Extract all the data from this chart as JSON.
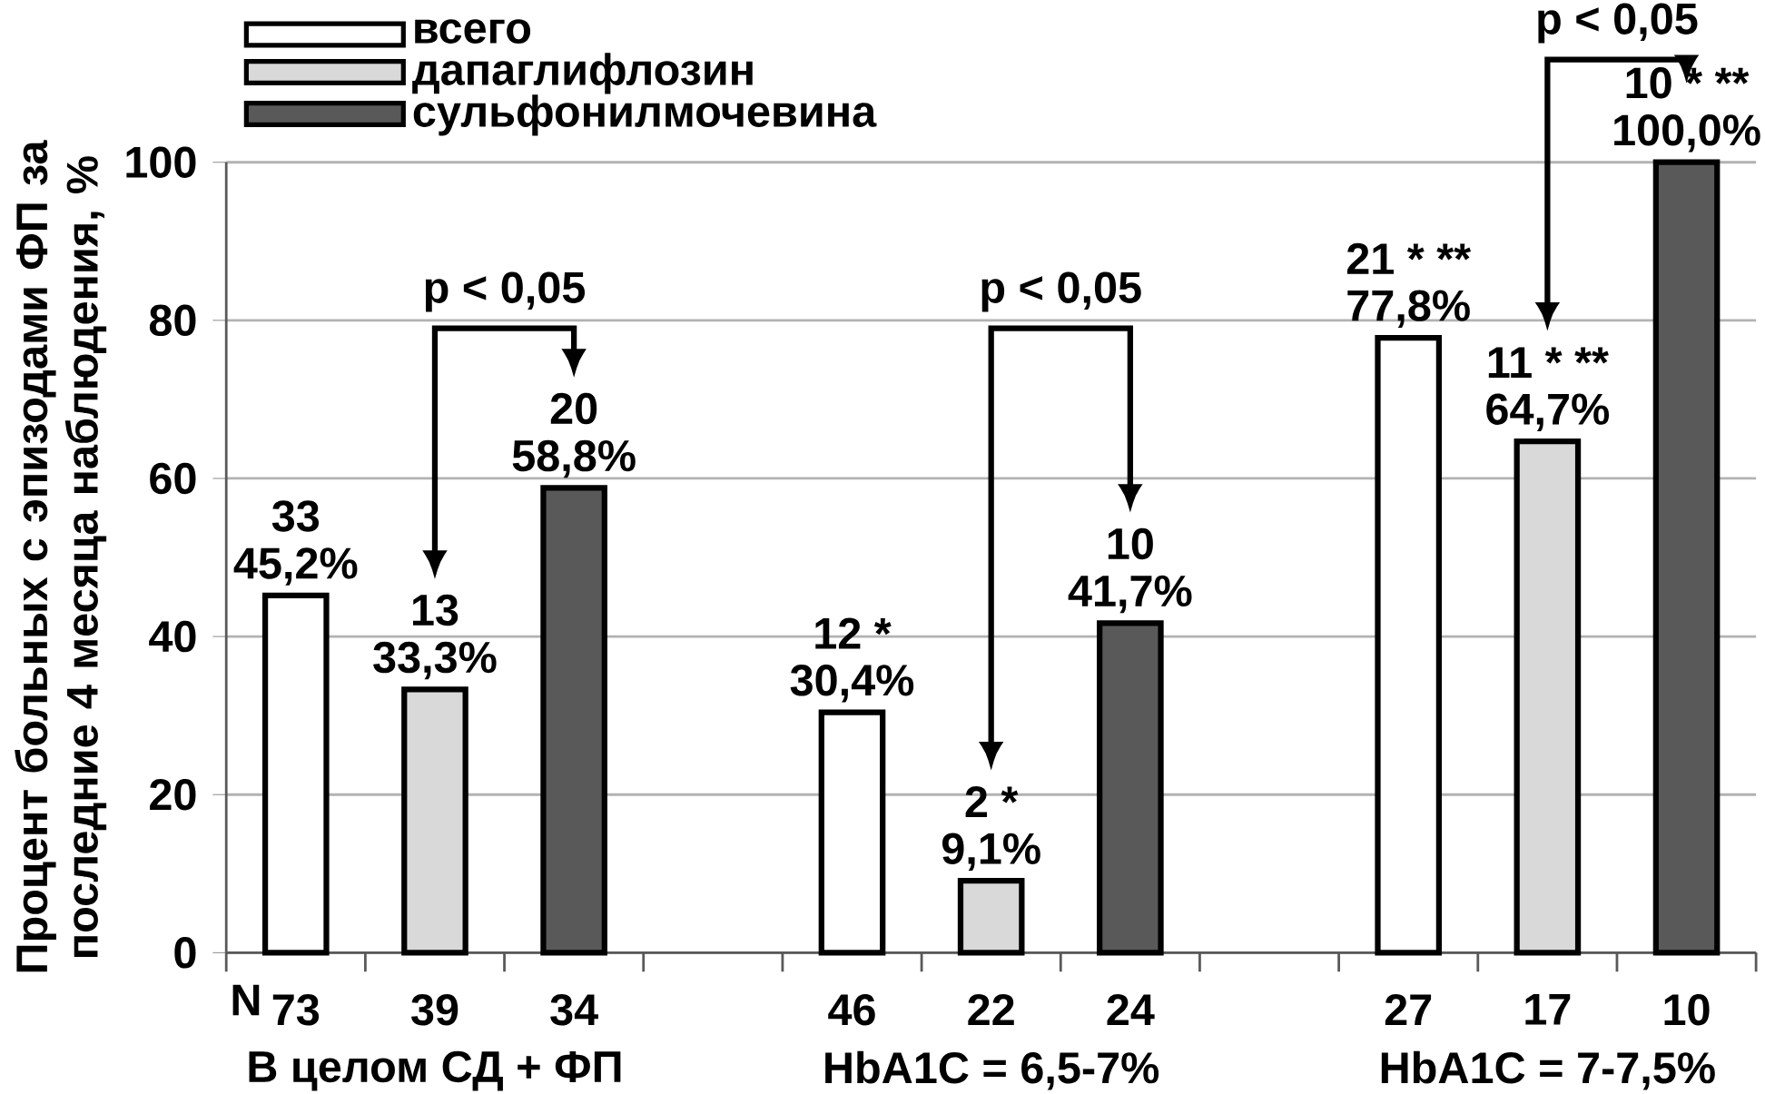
{
  "chart_data": {
    "type": "bar",
    "ylabel": "Процент больных с эпизодами ФП за последние 4 месяца наблюдения, %",
    "categories": [
      "73",
      "39",
      "34",
      null,
      "46",
      "22",
      "24",
      null,
      "27",
      "17",
      "10"
    ],
    "series": [
      {
        "name": "всего",
        "color": "#ffffff",
        "values": [
          45.2,
          null,
          null,
          null,
          30.4,
          null,
          null,
          null,
          77.8,
          null,
          null
        ],
        "value_labels": [
          "45,2%",
          null,
          null,
          null,
          "30,4%",
          null,
          null,
          null,
          "77,8%",
          null,
          null
        ]
      },
      {
        "name": "дапаглифлозин",
        "color": "#d9d9d9",
        "values": [
          null,
          33.3,
          null,
          null,
          null,
          9.1,
          null,
          null,
          null,
          64.7,
          null
        ],
        "value_labels": [
          null,
          "33,3%",
          null,
          null,
          null,
          "9,1%",
          null,
          null,
          null,
          "64,7%",
          null
        ]
      },
      {
        "name": "сульфонилмочевина",
        "color": "#595959",
        "values": [
          null,
          null,
          58.8,
          null,
          null,
          null,
          41.7,
          null,
          null,
          null,
          100
        ],
        "value_labels": [
          null,
          null,
          "58,8%",
          null,
          null,
          null,
          "41,7%",
          null,
          null,
          null,
          "100,0%"
        ]
      }
    ],
    "ylim": [
      0,
      100
    ],
    "yticks": [
      0,
      20,
      40,
      60,
      80,
      100
    ],
    "grid": "y",
    "legend": "top left",
    "annotations": [
      "N",
      "В целом СД + ФП",
      "HbA1C = 6,5-7%",
      "HbA1C = 7-7,5%",
      "p < 0,05",
      "p < 0,05",
      "p < 0,05",
      {
        "text": "33",
        "x": "73",
        "y": 45.2
      },
      {
        "text": "13",
        "x": "39",
        "y": 33.3
      },
      {
        "text": "20",
        "x": "34",
        "y": 58.8
      },
      {
        "text": "12 *",
        "x": "46",
        "y": 30.4
      },
      {
        "text": "2 *",
        "x": "22",
        "y": 9.1
      },
      {
        "text": "10",
        "x": "24",
        "y": 41.7
      },
      {
        "text": "21 * **",
        "x": "27",
        "y": 77.8
      },
      {
        "text": "11 * **",
        "x": "17",
        "y": 64.7
      },
      {
        "text": "10 * **",
        "x": "10",
        "y": 100
      }
    ]
  }
}
